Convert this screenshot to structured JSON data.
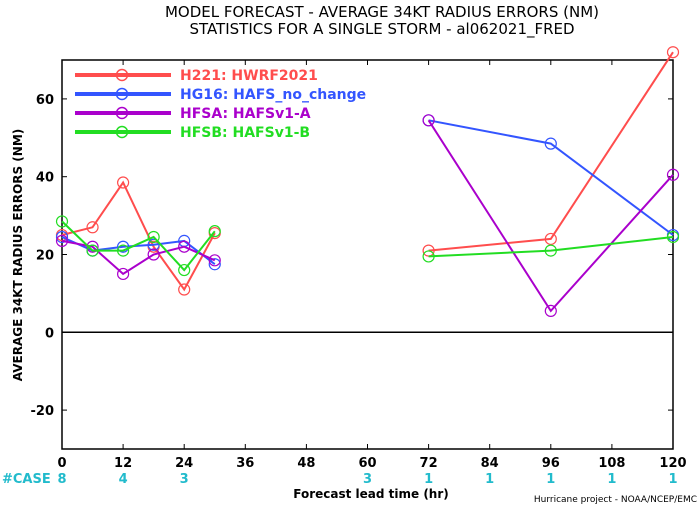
{
  "chart_data": {
    "type": "line",
    "title": "MODEL FORECAST - AVERAGE 34KT RADIUS ERRORS (NM)",
    "subtitle": "STATISTICS FOR A SINGLE STORM - al062021_FRED",
    "xlabel": "Forecast lead time (hr)",
    "ylabel": "AVERAGE 34KT RADIUS ERRORS (NM)",
    "credit": "Hurricane project - NOAA/NCEP/EMC",
    "x_ticks": [
      0,
      12,
      24,
      36,
      48,
      60,
      72,
      84,
      96,
      108,
      120
    ],
    "y_ticks": [
      -20,
      0,
      20,
      40,
      60
    ],
    "xlim": [
      0,
      120
    ],
    "ylim": [
      -30,
      70
    ],
    "grid": false,
    "legend_position": "top-left",
    "case_label": "#CASE",
    "cases": [
      {
        "x": 0,
        "n": "8"
      },
      {
        "x": 12,
        "n": "4"
      },
      {
        "x": 24,
        "n": "3"
      },
      {
        "x": 60,
        "n": "3"
      },
      {
        "x": 72,
        "n": "1"
      },
      {
        "x": 84,
        "n": "1"
      },
      {
        "x": 96,
        "n": "1"
      },
      {
        "x": 108,
        "n": "1"
      },
      {
        "x": 120,
        "n": "1"
      }
    ],
    "series": [
      {
        "name": "H221: HWRF2021",
        "color": "#ff4d4d",
        "segments": [
          [
            [
              0,
              25
            ],
            [
              6,
              27
            ],
            [
              12,
              38.5
            ],
            [
              18,
              22
            ],
            [
              24,
              11
            ],
            [
              30,
              25.5
            ]
          ],
          [
            [
              72,
              21
            ],
            [
              96,
              24
            ],
            [
              120,
              72
            ]
          ]
        ]
      },
      {
        "name": "HG16: HAFS_no_change",
        "color": "#3355ff",
        "segments": [
          [
            [
              0,
              24.5
            ],
            [
              6,
              21
            ],
            [
              12,
              22
            ],
            [
              18,
              22.5
            ],
            [
              24,
              23.5
            ],
            [
              30,
              17.5
            ]
          ],
          [
            [
              72,
              54.5
            ],
            [
              96,
              48.5
            ],
            [
              120,
              25
            ]
          ]
        ]
      },
      {
        "name": "HFSA: HAFSv1-A",
        "color": "#aa00cc",
        "segments": [
          [
            [
              0,
              23.5
            ],
            [
              6,
              22
            ],
            [
              12,
              15
            ],
            [
              18,
              20
            ],
            [
              24,
              22
            ],
            [
              30,
              18.5
            ]
          ],
          [
            [
              72,
              54.5
            ],
            [
              96,
              5.5
            ],
            [
              120,
              40.5
            ]
          ]
        ]
      },
      {
        "name": "HFSB: HAFSv1-B",
        "color": "#22dd22",
        "segments": [
          [
            [
              0,
              28.5
            ],
            [
              6,
              21
            ],
            [
              12,
              21
            ],
            [
              18,
              24.5
            ],
            [
              24,
              16
            ],
            [
              30,
              26
            ]
          ],
          [
            [
              72,
              19.5
            ],
            [
              96,
              21
            ],
            [
              120,
              24.5
            ]
          ]
        ]
      }
    ]
  },
  "colors": {
    "axis": "#000000",
    "case_text": "#22bbcc"
  }
}
